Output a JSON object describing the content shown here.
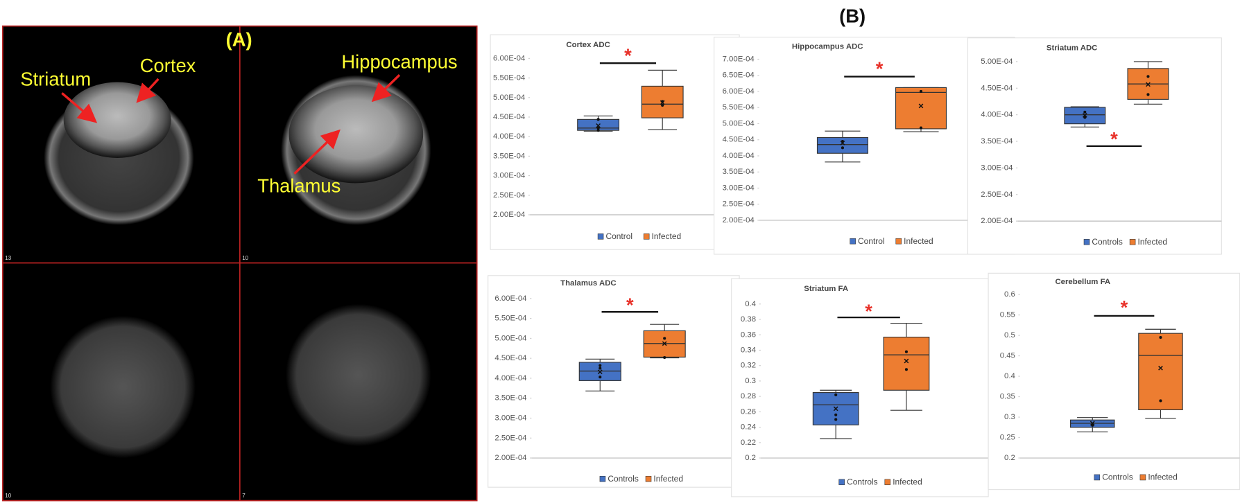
{
  "panel_a": {
    "label": "(A)",
    "structures": [
      "Striatum",
      "Cortex",
      "Hippocampus",
      "Thalamus"
    ],
    "slice_numbers": [
      "13",
      "10",
      "10",
      "7"
    ]
  },
  "panel_b": {
    "label": "(B)"
  },
  "chart_data": [
    {
      "type": "box",
      "title": "Cortex ADC",
      "annotation": "*",
      "ylim": [
        0.0002,
        0.0006
      ],
      "yticks": [
        {
          "value": 0.0002,
          "label": "2.00E-04"
        },
        {
          "value": 0.00025,
          "label": "2.50E-04"
        },
        {
          "value": 0.0003,
          "label": "3.00E-04"
        },
        {
          "value": 0.00035,
          "label": "3.50E-04"
        },
        {
          "value": 0.0004,
          "label": "4.00E-04"
        },
        {
          "value": 0.00045,
          "label": "4.50E-04"
        },
        {
          "value": 0.0005,
          "label": "5.00E-04"
        },
        {
          "value": 0.00055,
          "label": "5.50E-04"
        },
        {
          "value": 0.0006,
          "label": "6.00E-04"
        }
      ],
      "series": [
        {
          "name": "Control",
          "color": "#4472c4",
          "whisker_low": 0.000414,
          "q1": 0.000416,
          "median": 0.000422,
          "q3": 0.000444,
          "whisker_high": 0.000453,
          "mean": 0.000428,
          "points": [
            0.000416,
            0.000422,
            0.000444
          ]
        },
        {
          "name": "Infected",
          "color": "#ed7d31",
          "whisker_low": 0.000418,
          "q1": 0.000448,
          "median": 0.000483,
          "q3": 0.000529,
          "whisker_high": 0.00057,
          "mean": 0.000487,
          "points": [
            0.00048,
            0.00049
          ]
        }
      ]
    },
    {
      "type": "box",
      "title": "Hippocampus ADC",
      "annotation": "*",
      "ylim": [
        0.0002,
        0.0007
      ],
      "yticks": [
        {
          "value": 0.0002,
          "label": "2.00E-04"
        },
        {
          "value": 0.00025,
          "label": "2.50E-04"
        },
        {
          "value": 0.0003,
          "label": "3.00E-04"
        },
        {
          "value": 0.00035,
          "label": "3.50E-04"
        },
        {
          "value": 0.0004,
          "label": "4.00E-04"
        },
        {
          "value": 0.00045,
          "label": "4.50E-04"
        },
        {
          "value": 0.0005,
          "label": "5.00E-04"
        },
        {
          "value": 0.00055,
          "label": "5.50E-04"
        },
        {
          "value": 0.0006,
          "label": "6.00E-04"
        },
        {
          "value": 0.00065,
          "label": "6.50E-04"
        },
        {
          "value": 0.0007,
          "label": "7.00E-04"
        }
      ],
      "series": [
        {
          "name": "Control",
          "color": "#4472c4",
          "whisker_low": 0.000381,
          "q1": 0.000408,
          "median": 0.000435,
          "q3": 0.000457,
          "whisker_high": 0.000477,
          "mean": 0.00044,
          "points": [
            0.000425,
            0.000445
          ]
        },
        {
          "name": "Infected",
          "color": "#ed7d31",
          "whisker_low": 0.000475,
          "q1": 0.000484,
          "median": 0.000597,
          "q3": 0.000612,
          "whisker_high": 0.000612,
          "mean": 0.000555,
          "points": [
            0.000487,
            0.0006
          ]
        }
      ]
    },
    {
      "type": "box",
      "title": "Striatum ADC",
      "annotation": "*",
      "ylim": [
        0.0002,
        0.0005
      ],
      "yticks": [
        {
          "value": 0.0002,
          "label": "2.00E-04"
        },
        {
          "value": 0.00025,
          "label": "2.50E-04"
        },
        {
          "value": 0.0003,
          "label": "3.00E-04"
        },
        {
          "value": 0.00035,
          "label": "3.50E-04"
        },
        {
          "value": 0.0004,
          "label": "4.00E-04"
        },
        {
          "value": 0.00045,
          "label": "4.50E-04"
        },
        {
          "value": 0.0005,
          "label": "5.00E-04"
        }
      ],
      "series": [
        {
          "name": "Controls",
          "color": "#4472c4",
          "whisker_low": 0.000377,
          "q1": 0.000383,
          "median": 0.0004,
          "q3": 0.000414,
          "whisker_high": 0.000415,
          "mean": 0.000399,
          "points": [
            0.000405,
            0.000395
          ]
        },
        {
          "name": "Infected",
          "color": "#ed7d31",
          "whisker_low": 0.00042,
          "q1": 0.000429,
          "median": 0.000458,
          "q3": 0.000487,
          "whisker_high": 0.0005,
          "mean": 0.000457,
          "points": [
            0.000438,
            0.000472
          ]
        }
      ]
    },
    {
      "type": "box",
      "title": "Thalamus ADC",
      "annotation": "*",
      "ylim": [
        0.0002,
        0.0006
      ],
      "yticks": [
        {
          "value": 0.0002,
          "label": "2.00E-04"
        },
        {
          "value": 0.00025,
          "label": "2.50E-04"
        },
        {
          "value": 0.0003,
          "label": "3.00E-04"
        },
        {
          "value": 0.00035,
          "label": "3.50E-04"
        },
        {
          "value": 0.0004,
          "label": "4.00E-04"
        },
        {
          "value": 0.00045,
          "label": "4.50E-04"
        },
        {
          "value": 0.0005,
          "label": "5.00E-04"
        },
        {
          "value": 0.00055,
          "label": "5.50E-04"
        },
        {
          "value": 0.0006,
          "label": "6.00E-04"
        }
      ],
      "series": [
        {
          "name": "Controls",
          "color": "#4472c4",
          "whisker_low": 0.000368,
          "q1": 0.000394,
          "median": 0.000418,
          "q3": 0.00044,
          "whisker_high": 0.000448,
          "mean": 0.000416,
          "points": [
            0.000403,
            0.000425,
            0.000432
          ]
        },
        {
          "name": "Infected",
          "color": "#ed7d31",
          "whisker_low": 0.000451,
          "q1": 0.000453,
          "median": 0.000487,
          "q3": 0.000519,
          "whisker_high": 0.000535,
          "mean": 0.000487,
          "points": [
            0.000452,
            0.0005
          ]
        }
      ]
    },
    {
      "type": "box",
      "title": "Striatum FA",
      "annotation": "*",
      "ylim": [
        0.2,
        0.4
      ],
      "yticks": [
        0.2,
        0.22,
        0.24,
        0.26,
        0.28,
        0.3,
        0.32,
        0.34,
        0.36,
        0.38,
        0.4
      ],
      "series": [
        {
          "name": "Controls",
          "color": "#4472c4",
          "whisker_low": 0.225,
          "q1": 0.243,
          "median": 0.269,
          "q3": 0.285,
          "whisker_high": 0.288,
          "mean": 0.264,
          "points": [
            0.25,
            0.256,
            0.282
          ]
        },
        {
          "name": "Infected",
          "color": "#ed7d31",
          "whisker_low": 0.262,
          "q1": 0.288,
          "median": 0.334,
          "q3": 0.357,
          "whisker_high": 0.375,
          "mean": 0.326,
          "points": [
            0.315,
            0.338
          ]
        }
      ]
    },
    {
      "type": "box",
      "title": "Cerebellum FA",
      "annotation": "*",
      "ylim": [
        0.2,
        0.6
      ],
      "yticks": [
        0.2,
        0.25,
        0.3,
        0.35,
        0.4,
        0.45,
        0.5,
        0.55,
        0.6
      ],
      "series": [
        {
          "name": "Controls",
          "color": "#4472c4",
          "whisker_low": 0.264,
          "q1": 0.275,
          "median": 0.285,
          "q3": 0.293,
          "whisker_high": 0.299,
          "mean": 0.285,
          "points": [
            0.28
          ]
        },
        {
          "name": "Infected",
          "color": "#ed7d31",
          "whisker_low": 0.297,
          "q1": 0.318,
          "median": 0.451,
          "q3": 0.505,
          "whisker_high": 0.515,
          "mean": 0.42,
          "points": [
            0.34,
            0.495
          ]
        }
      ]
    }
  ]
}
